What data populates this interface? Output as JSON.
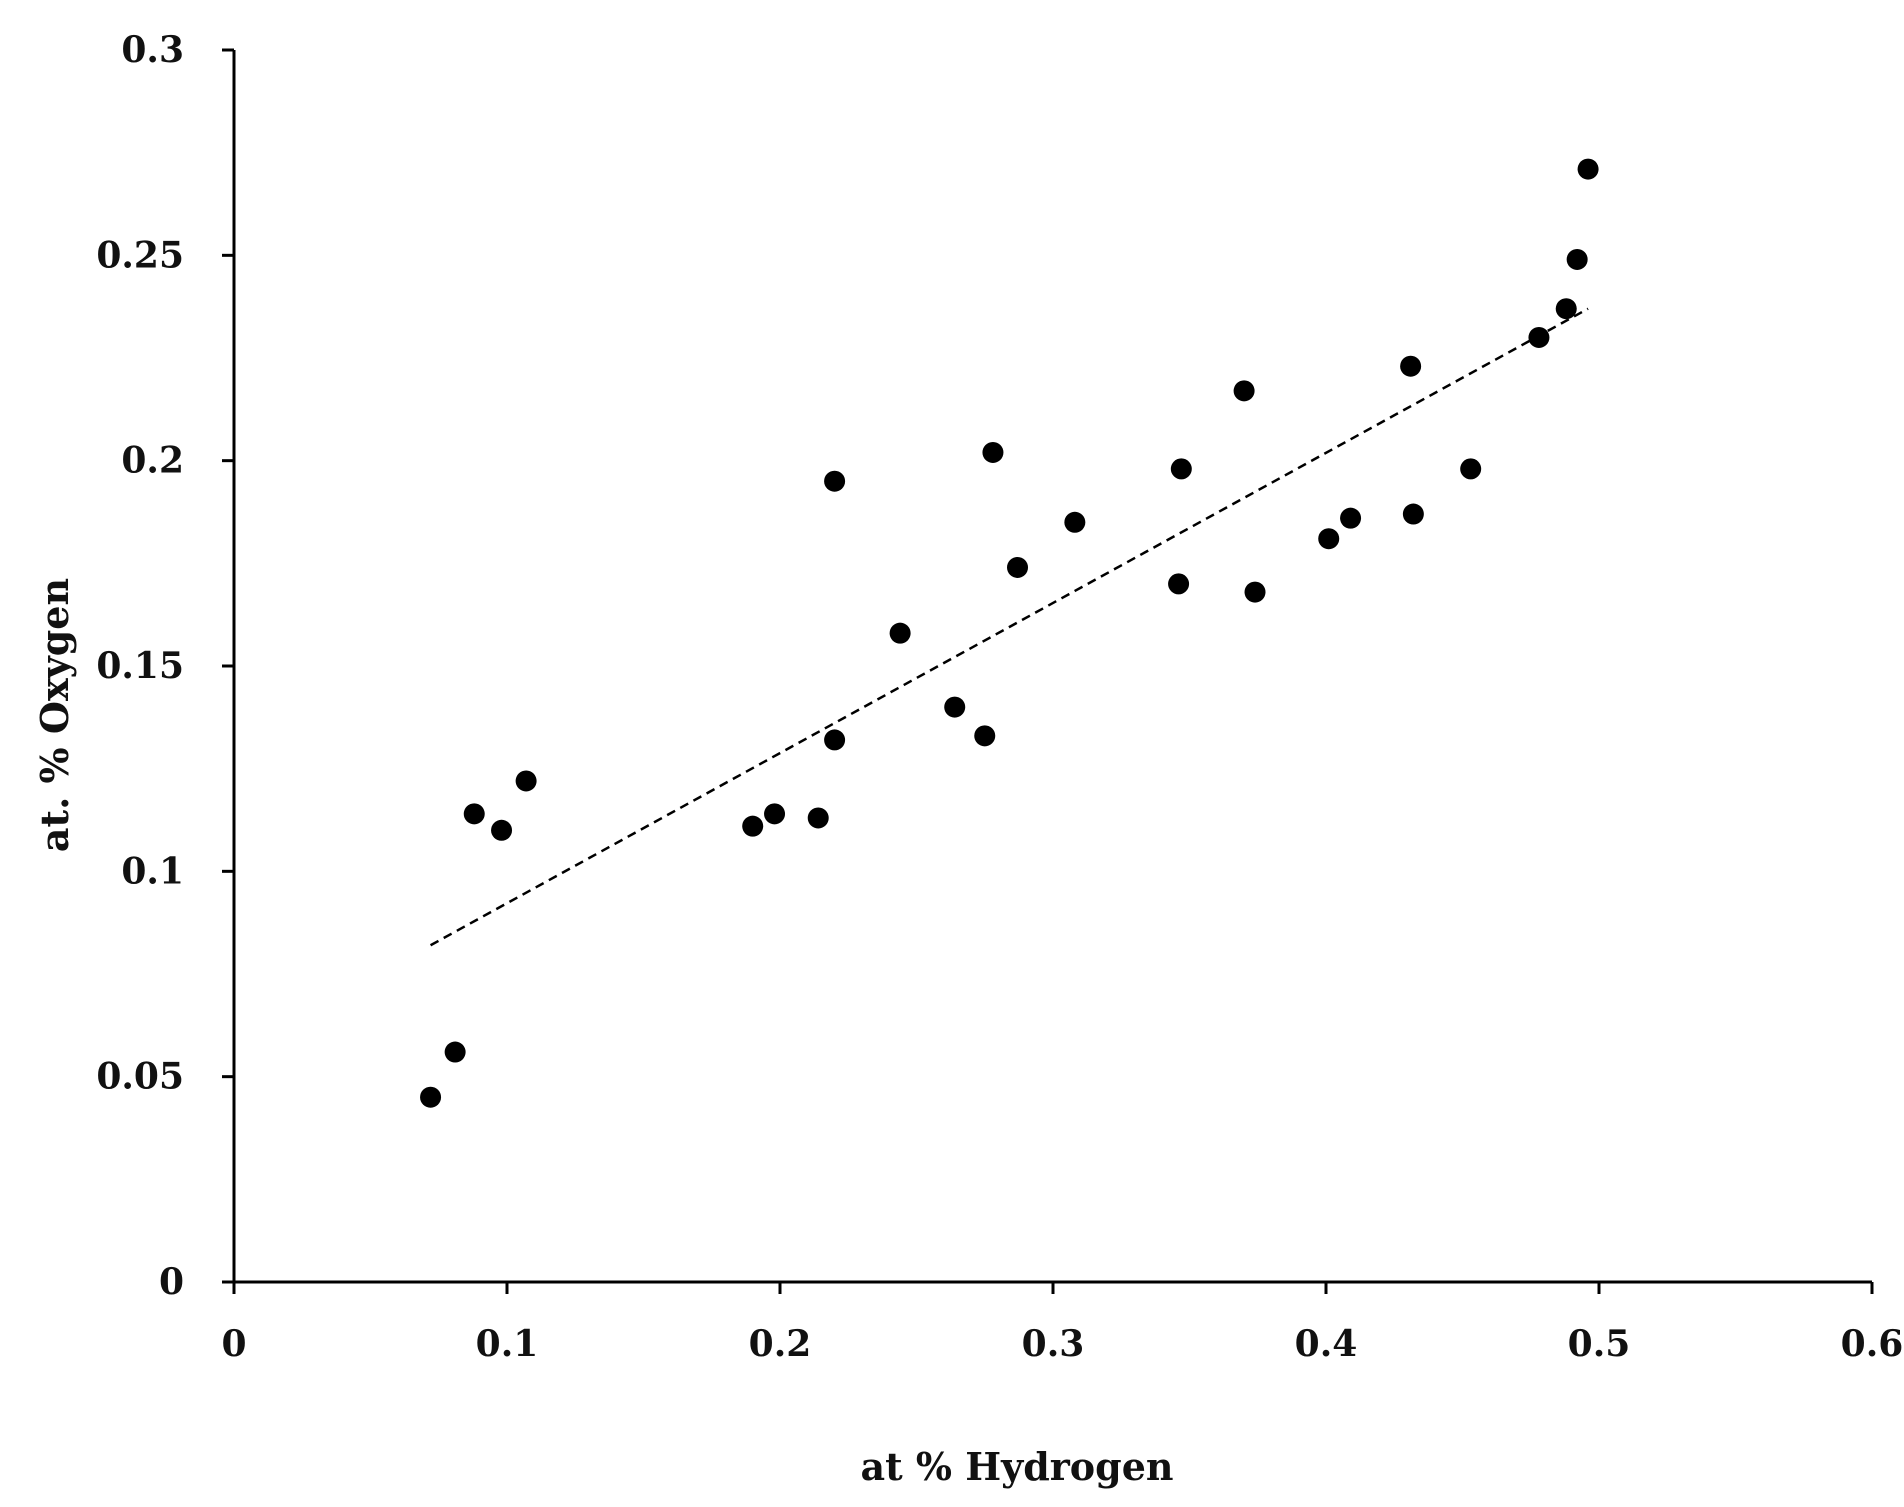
{
  "chart_data": {
    "type": "scatter",
    "title": "",
    "xlabel": "at %  Hydrogen",
    "ylabel": "at. % Oxygen",
    "xlim": [
      0,
      0.6
    ],
    "ylim": [
      0,
      0.3
    ],
    "x_ticks": [
      "0",
      "0.1",
      "0.2",
      "0.3",
      "0.4",
      "0.5",
      "0.6"
    ],
    "y_ticks": [
      "0",
      "0.05",
      "0.1",
      "0.15",
      "0.2",
      "0.25",
      "0.3"
    ],
    "grid": false,
    "legend": "none",
    "colors": {
      "points": "#000000",
      "trendline": "#000000",
      "axes": "#000000"
    },
    "series": [
      {
        "points": [
          {
            "x": 0.072,
            "y": 0.045
          },
          {
            "x": 0.081,
            "y": 0.056
          },
          {
            "x": 0.088,
            "y": 0.114
          },
          {
            "x": 0.098,
            "y": 0.11
          },
          {
            "x": 0.107,
            "y": 0.122
          },
          {
            "x": 0.19,
            "y": 0.111
          },
          {
            "x": 0.198,
            "y": 0.114
          },
          {
            "x": 0.214,
            "y": 0.113
          },
          {
            "x": 0.22,
            "y": 0.132
          },
          {
            "x": 0.22,
            "y": 0.195
          },
          {
            "x": 0.244,
            "y": 0.158
          },
          {
            "x": 0.264,
            "y": 0.14
          },
          {
            "x": 0.275,
            "y": 0.133
          },
          {
            "x": 0.278,
            "y": 0.202
          },
          {
            "x": 0.287,
            "y": 0.174
          },
          {
            "x": 0.308,
            "y": 0.185
          },
          {
            "x": 0.346,
            "y": 0.17
          },
          {
            "x": 0.347,
            "y": 0.198
          },
          {
            "x": 0.37,
            "y": 0.217
          },
          {
            "x": 0.374,
            "y": 0.168
          },
          {
            "x": 0.401,
            "y": 0.181
          },
          {
            "x": 0.409,
            "y": 0.186
          },
          {
            "x": 0.431,
            "y": 0.223
          },
          {
            "x": 0.432,
            "y": 0.187
          },
          {
            "x": 0.453,
            "y": 0.198
          },
          {
            "x": 0.478,
            "y": 0.23
          },
          {
            "x": 0.488,
            "y": 0.237
          },
          {
            "x": 0.492,
            "y": 0.249
          },
          {
            "x": 0.496,
            "y": 0.271
          }
        ]
      }
    ],
    "trendline": {
      "style": "dashed",
      "x": [
        0.072,
        0.496
      ],
      "y": [
        0.082,
        0.237
      ]
    }
  }
}
